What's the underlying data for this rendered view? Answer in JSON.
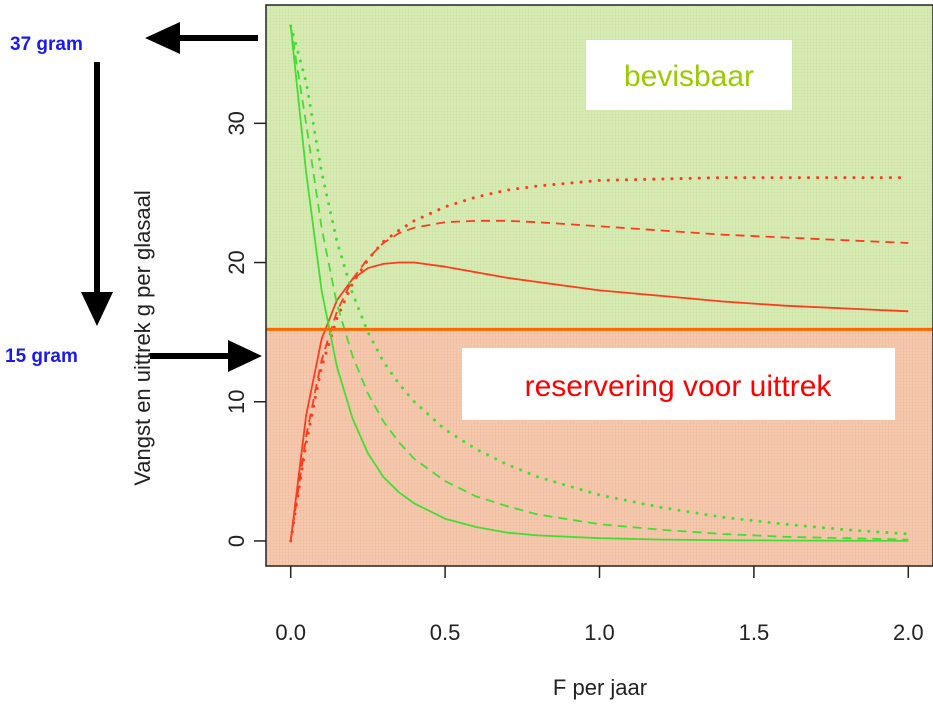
{
  "chart_data": {
    "type": "line",
    "title": "",
    "xlabel": "F  per jaar",
    "ylabel": "Vangst en uittrek  g per glasaal",
    "xlim": [
      -0.08,
      2.08
    ],
    "ylim": [
      -1.8,
      38.5
    ],
    "x_ticks": [
      "0.0",
      "0.5",
      "1.0",
      "1.5",
      "2.0"
    ],
    "y_ticks": [
      "0",
      "10",
      "20",
      "30"
    ],
    "threshold": {
      "y": 15.2,
      "color": "#ff6600"
    },
    "regions": [
      {
        "label": "bevisbaar",
        "color": "#d8ebb5",
        "label_color": "#99cc00",
        "y_from": 15.2,
        "y_to": 38.5
      },
      {
        "label": "reservering voor uittrek",
        "color": "#f5c9ae",
        "label_color": "#ff0000",
        "y_from": -1.8,
        "y_to": 15.2
      }
    ],
    "annotations": [
      {
        "text": "37 gram",
        "value": 37
      },
      {
        "text": "15 gram",
        "value": 15
      }
    ],
    "x": [
      0.0,
      0.05,
      0.1,
      0.15,
      0.2,
      0.25,
      0.3,
      0.35,
      0.4,
      0.5,
      0.6,
      0.7,
      0.8,
      1.0,
      1.2,
      1.4,
      1.6,
      1.8,
      2.0
    ],
    "series": [
      {
        "style": "solid",
        "color": "#ff3b1f",
        "values": [
          0,
          9.0,
          14.5,
          17.3,
          18.8,
          19.6,
          19.9,
          20.0,
          20.0,
          19.7,
          19.3,
          18.9,
          18.6,
          18.0,
          17.6,
          17.2,
          16.9,
          16.7,
          16.5
        ]
      },
      {
        "style": "dashed",
        "color": "#ff3b1f",
        "values": [
          0,
          7.5,
          13.0,
          16.5,
          18.8,
          20.3,
          21.4,
          22.1,
          22.5,
          22.9,
          23.0,
          23.0,
          22.9,
          22.6,
          22.3,
          22.0,
          21.8,
          21.6,
          21.4
        ]
      },
      {
        "style": "dotted",
        "color": "#ff3b1f",
        "values": [
          0,
          7.0,
          12.5,
          16.0,
          18.5,
          20.2,
          21.5,
          22.3,
          23.0,
          24.0,
          24.7,
          25.2,
          25.5,
          25.9,
          26.0,
          26.1,
          26.1,
          26.1,
          26.1
        ]
      },
      {
        "style": "solid",
        "color": "#44dd33",
        "values": [
          37.0,
          26.5,
          18.0,
          12.5,
          8.8,
          6.3,
          4.6,
          3.5,
          2.7,
          1.6,
          1.0,
          0.6,
          0.4,
          0.2,
          0.1,
          0.05,
          0.03,
          0.02,
          0.01
        ]
      },
      {
        "style": "dashed",
        "color": "#44dd33",
        "values": [
          37.0,
          30.0,
          22.5,
          17.0,
          13.3,
          10.6,
          8.6,
          7.1,
          5.9,
          4.3,
          3.2,
          2.5,
          1.9,
          1.2,
          0.8,
          0.5,
          0.3,
          0.2,
          0.1
        ]
      },
      {
        "style": "dotted",
        "color": "#44dd33",
        "values": [
          37.0,
          33.0,
          26.5,
          21.5,
          17.8,
          15.0,
          12.9,
          11.3,
          10.0,
          8.0,
          6.6,
          5.5,
          4.6,
          3.3,
          2.4,
          1.7,
          1.2,
          0.8,
          0.5
        ]
      }
    ]
  }
}
